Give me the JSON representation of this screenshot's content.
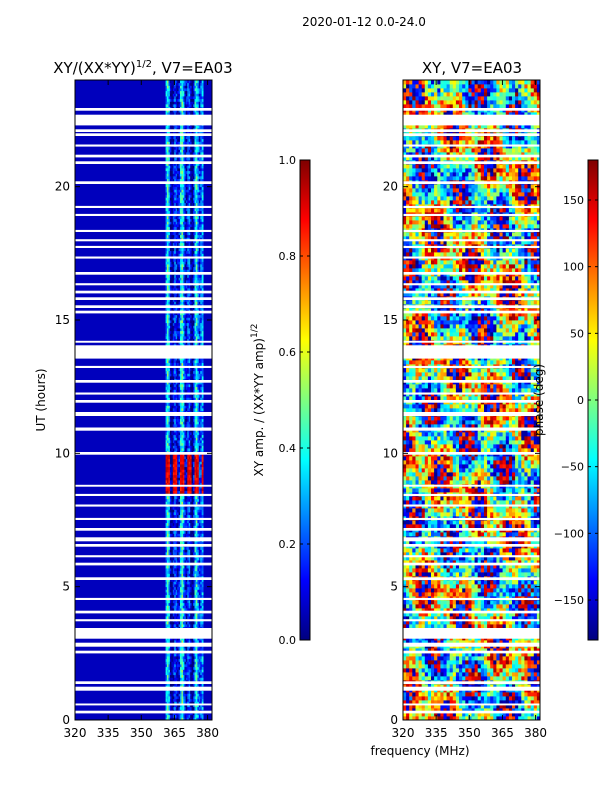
{
  "figure_title": "2020-01-12 0.0-24.0",
  "xlabel": "frequency (MHz)",
  "colors": {
    "jet": [
      "#00007f",
      "#0000ff",
      "#007fff",
      "#00ffff",
      "#7fff7f",
      "#ffff00",
      "#ff7f00",
      "#ff0000",
      "#7f0000"
    ],
    "gap": "#ffffff"
  },
  "chart_data": [
    {
      "type": "heatmap",
      "title": "XY/(XX*YY)",
      "title_sup": "1/2",
      "title_suffix": ", V7=EA03",
      "ylabel": "UT (hours)",
      "xlim": [
        320,
        382
      ],
      "ylim": [
        0,
        24
      ],
      "xticks": [
        "320",
        "335",
        "350",
        "365",
        "380"
      ],
      "yticks": [
        "0",
        "5",
        "10",
        "15",
        "20"
      ],
      "colorbar": {
        "label": "XY amp. / (XX*YY amp)",
        "label_sup": "1/2",
        "range": [
          0.0,
          1.0
        ],
        "ticks": [
          "0.0",
          "0.2",
          "0.4",
          "0.6",
          "0.8",
          "1.0"
        ]
      },
      "active_band_mhz": [
        361,
        378
      ],
      "peak_region": {
        "freq_mhz": [
          361,
          378
        ],
        "ut_hours": [
          8.5,
          9.9
        ],
        "value": 0.95
      }
    },
    {
      "type": "heatmap",
      "title": "XY, V7=EA03",
      "ylabel": "",
      "xlim": [
        320,
        382
      ],
      "ylim": [
        0,
        24
      ],
      "xticks": [
        "320",
        "335",
        "350",
        "365",
        "380"
      ],
      "yticks": [
        "0",
        "5",
        "10",
        "15",
        "20"
      ],
      "colorbar": {
        "label": "phase (deg)",
        "range": [
          -180,
          180
        ],
        "ticks": [
          "-150",
          "-100",
          "-50",
          "0",
          "50",
          "100",
          "150"
        ]
      }
    }
  ],
  "flagged_ut_hours": [
    [
      0.25,
      0.35
    ],
    [
      0.55,
      0.62
    ],
    [
      1.1,
      1.25
    ],
    [
      1.35,
      1.45
    ],
    [
      2.5,
      2.6
    ],
    [
      2.75,
      2.9
    ],
    [
      3.05,
      3.45
    ],
    [
      3.7,
      3.78
    ],
    [
      4.0,
      4.1
    ],
    [
      4.5,
      4.58
    ],
    [
      5.25,
      5.35
    ],
    [
      5.8,
      5.9
    ],
    [
      6.1,
      6.18
    ],
    [
      6.5,
      6.6
    ],
    [
      6.7,
      6.85
    ],
    [
      7.1,
      7.2
    ],
    [
      7.5,
      7.58
    ],
    [
      8.0,
      8.08
    ],
    [
      8.4,
      8.48
    ],
    [
      8.75,
      8.82
    ],
    [
      9.95,
      10.05
    ],
    [
      10.85,
      10.97
    ],
    [
      11.4,
      11.55
    ],
    [
      11.9,
      12.0
    ],
    [
      12.2,
      12.28
    ],
    [
      12.65,
      12.75
    ],
    [
      13.2,
      13.28
    ],
    [
      13.55,
      14.05
    ],
    [
      14.15,
      14.22
    ],
    [
      15.25,
      15.35
    ],
    [
      15.45,
      15.55
    ],
    [
      15.75,
      15.85
    ],
    [
      16.0,
      16.1
    ],
    [
      16.3,
      16.38
    ],
    [
      16.7,
      16.8
    ],
    [
      17.3,
      17.38
    ],
    [
      17.7,
      17.78
    ],
    [
      17.95,
      18.03
    ],
    [
      18.3,
      18.38
    ],
    [
      18.9,
      18.98
    ],
    [
      19.2,
      19.28
    ],
    [
      20.1,
      20.2
    ],
    [
      20.85,
      20.95
    ],
    [
      21.1,
      21.2
    ],
    [
      21.5,
      21.58
    ],
    [
      21.9,
      22.0
    ],
    [
      22.05,
      22.15
    ],
    [
      22.3,
      22.7
    ],
    [
      22.85,
      22.95
    ]
  ]
}
